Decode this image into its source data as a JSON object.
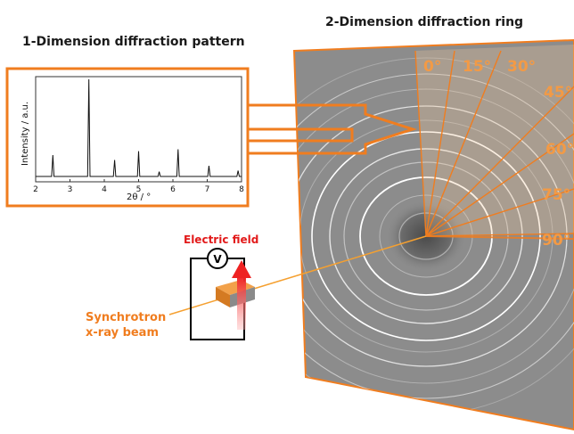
{
  "titles": {
    "one_d": "1-Dimension diffraction pattern",
    "two_d": "2-Dimension diffraction ring"
  },
  "plot": {
    "ylabel": "Intensity / a.u.",
    "xlabel": "2θ / °",
    "xticks": [
      "2",
      "3",
      "4",
      "5",
      "6",
      "7",
      "8"
    ],
    "xlim": [
      2,
      8
    ]
  },
  "chart_data": {
    "type": "line",
    "title": "1-Dimension diffraction pattern",
    "xlabel": "2θ / °",
    "ylabel": "Intensity / a.u.",
    "xlim": [
      2,
      8
    ],
    "ylim": [
      0,
      1
    ],
    "grid": false,
    "peaks": [
      {
        "x": 2.5,
        "y": 0.22
      },
      {
        "x": 3.55,
        "y": 1.0
      },
      {
        "x": 4.3,
        "y": 0.17
      },
      {
        "x": 5.0,
        "y": 0.26
      },
      {
        "x": 5.6,
        "y": 0.05
      },
      {
        "x": 6.15,
        "y": 0.28
      },
      {
        "x": 7.05,
        "y": 0.11
      },
      {
        "x": 7.9,
        "y": 0.06
      }
    ]
  },
  "angles": [
    "0°",
    "15°",
    "30°",
    "45°",
    "60°",
    "75°",
    "90°"
  ],
  "labels": {
    "electric_field": "Electric field",
    "voltmeter": "V",
    "beam_line1": "Synchrotron",
    "beam_line2": "x-ray beam"
  },
  "colors": {
    "orange": "#f07d1f",
    "angle_text": "#f39a45",
    "detector": "#8a8a8a",
    "field_arrow": "#ee2222",
    "sample": "#e88a2a"
  }
}
